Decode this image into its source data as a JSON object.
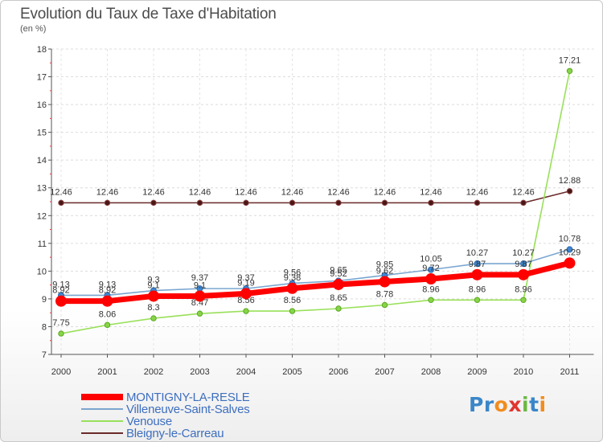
{
  "chart_data": {
    "type": "line",
    "title": "Evolution du Taux de Taxe d'Habitation",
    "unit_label": "(en %)",
    "ylim": [
      7,
      18
    ],
    "yticks": [
      7,
      8,
      9,
      10,
      11,
      12,
      13,
      14,
      15,
      16,
      17,
      18
    ],
    "categories": [
      "2000",
      "2001",
      "2002",
      "2003",
      "2004",
      "2005",
      "2006",
      "2007",
      "2008",
      "2009",
      "2010",
      "2011"
    ],
    "series": [
      {
        "name": "Bleigny-le-Carreau",
        "color": "#6b2a2a",
        "values": [
          12.46,
          12.46,
          12.46,
          12.46,
          12.46,
          12.46,
          12.46,
          12.46,
          12.46,
          12.46,
          12.46,
          12.88
        ],
        "labels": [
          "12.46",
          "12.46",
          "12.46",
          "12.46",
          "12.46",
          "12.46",
          "12.46",
          "12.46",
          "12.46",
          "12.46",
          "12.46",
          "12.88"
        ]
      },
      {
        "name": "Venouse",
        "color": "#99e05a",
        "values": [
          7.75,
          8.06,
          8.3,
          8.47,
          8.56,
          8.56,
          8.65,
          8.78,
          8.96,
          8.96,
          8.96,
          17.21
        ],
        "labels": [
          "7.75",
          "8.06",
          "8.3",
          "8.47",
          "8.56",
          "8.56",
          "8.65",
          "8.78",
          "8.96",
          "8.96",
          "8.96",
          "17.21"
        ]
      },
      {
        "name": "Villeneuve-Saint-Salves",
        "color": "#7aa6d0",
        "values": [
          9.13,
          9.13,
          9.3,
          9.37,
          9.37,
          9.56,
          9.65,
          9.85,
          10.05,
          10.27,
          10.27,
          10.78
        ],
        "labels": [
          "9.13",
          "9.13",
          "9.3",
          "9.37",
          "9.37",
          "9.56",
          "9.65",
          "9.85",
          "10.05",
          "10.27",
          "10.27",
          "10.78"
        ]
      },
      {
        "name": "MONTIGNY-LA-RESLE",
        "color": "#ff0000",
        "values": [
          8.92,
          8.92,
          9.1,
          9.1,
          9.19,
          9.38,
          9.52,
          9.62,
          9.72,
          9.87,
          9.87,
          10.29
        ],
        "labels": [
          "8.92",
          "8.92",
          "9.1",
          "9.1",
          "9.19",
          "9.38",
          "9.52",
          "9.62",
          "9.72",
          "9.87",
          "9.87",
          "10.29"
        ]
      }
    ],
    "legend_order": [
      "MONTIGNY-LA-RESLE",
      "Villeneuve-Saint-Salves",
      "Venouse",
      "Bleigny-le-Carreau"
    ]
  },
  "brand": {
    "letters": [
      "P",
      "r",
      "o",
      "x",
      "i",
      "t",
      "i"
    ],
    "colors": [
      "#3a86c8",
      "#3a86c8",
      "#f28c1e",
      "#e0352f",
      "#6bb944",
      "#3a86c8",
      "#f28c1e"
    ]
  }
}
